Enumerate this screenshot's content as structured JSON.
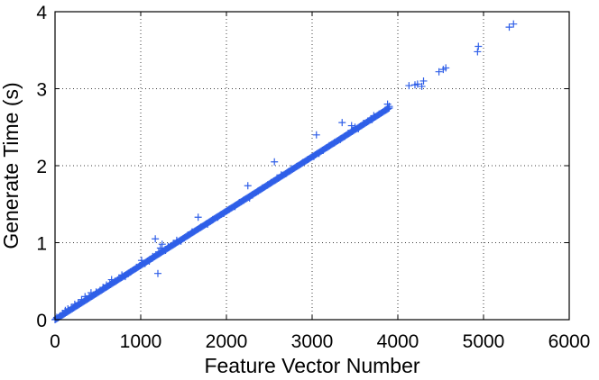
{
  "chart_data": {
    "type": "scatter",
    "title": "",
    "xlabel": "Feature Vector Number",
    "ylabel": "Generate Time (s)",
    "xlim": [
      0,
      6000
    ],
    "ylim": [
      0,
      4
    ],
    "x_ticks": [
      0,
      1000,
      2000,
      3000,
      4000,
      5000,
      6000
    ],
    "y_ticks": [
      0,
      1,
      2,
      3,
      4
    ],
    "x_tick_labels": [
      "0",
      "1000",
      "2000",
      "3000",
      "4000",
      "5000",
      "6000"
    ],
    "y_tick_labels": [
      "0",
      "1",
      "2",
      "3",
      "4"
    ],
    "grid": true,
    "marker": "+",
    "color": "#2f5fe8",
    "trend": {
      "slope_per_1000": 0.705,
      "range": [
        0,
        3900
      ],
      "spacing": 12
    },
    "series": [
      {
        "values": [
          [
            20,
            0.03
          ],
          [
            60,
            0.05
          ],
          [
            90,
            0.08
          ],
          [
            120,
            0.12
          ],
          [
            150,
            0.14
          ],
          [
            190,
            0.16
          ],
          [
            230,
            0.2
          ],
          [
            270,
            0.22
          ],
          [
            310,
            0.26
          ],
          [
            350,
            0.3
          ],
          [
            400,
            0.31
          ],
          [
            420,
            0.35
          ],
          [
            480,
            0.36
          ],
          [
            560,
            0.42
          ],
          [
            600,
            0.45
          ],
          [
            640,
            0.47
          ],
          [
            660,
            0.52
          ],
          [
            700,
            0.5
          ],
          [
            780,
            0.58
          ],
          [
            820,
            0.56
          ],
          [
            880,
            0.62
          ],
          [
            950,
            0.68
          ],
          [
            990,
            0.7
          ],
          [
            1010,
            0.77
          ],
          [
            1050,
            0.73
          ],
          [
            1100,
            0.76
          ],
          [
            1140,
            0.82
          ],
          [
            1170,
            1.05
          ],
          [
            1200,
            0.6
          ],
          [
            1210,
            0.88
          ],
          [
            1230,
            0.93
          ],
          [
            1250,
            0.98
          ],
          [
            1290,
            0.9
          ],
          [
            1320,
            0.95
          ],
          [
            1380,
            0.99
          ],
          [
            1420,
            1.03
          ],
          [
            1470,
            1.02
          ],
          [
            1550,
            1.1
          ],
          [
            1600,
            1.14
          ],
          [
            1670,
            1.33
          ],
          [
            1700,
            1.2
          ],
          [
            1780,
            1.24
          ],
          [
            1840,
            1.3
          ],
          [
            1900,
            1.33
          ],
          [
            1970,
            1.38
          ],
          [
            2030,
            1.43
          ],
          [
            2100,
            1.47
          ],
          [
            2150,
            1.52
          ],
          [
            2200,
            1.55
          ],
          [
            2250,
            1.74
          ],
          [
            2270,
            1.58
          ],
          [
            2300,
            1.62
          ],
          [
            2370,
            1.67
          ],
          [
            2420,
            1.71
          ],
          [
            2480,
            1.75
          ],
          [
            2520,
            1.78
          ],
          [
            2560,
            2.05
          ],
          [
            2590,
            1.84
          ],
          [
            2640,
            1.88
          ],
          [
            2700,
            1.9
          ],
          [
            2760,
            1.96
          ],
          [
            2820,
            1.99
          ],
          [
            2890,
            2.04
          ],
          [
            2950,
            2.08
          ],
          [
            3020,
            2.12
          ],
          [
            3050,
            2.4
          ],
          [
            3080,
            2.16
          ],
          [
            3130,
            2.2
          ],
          [
            3200,
            2.26
          ],
          [
            3260,
            2.3
          ],
          [
            3330,
            2.34
          ],
          [
            3350,
            2.56
          ],
          [
            3380,
            2.38
          ],
          [
            3420,
            2.42
          ],
          [
            3460,
            2.52
          ],
          [
            3500,
            2.5
          ],
          [
            3540,
            2.48
          ],
          [
            3600,
            2.55
          ],
          [
            3650,
            2.58
          ],
          [
            3700,
            2.6
          ],
          [
            3720,
            2.65
          ],
          [
            3780,
            2.67
          ],
          [
            3850,
            2.72
          ],
          [
            3880,
            2.8
          ],
          [
            3900,
            2.77
          ],
          [
            4130,
            3.04
          ],
          [
            4200,
            3.05
          ],
          [
            4230,
            3.06
          ],
          [
            4280,
            3.03
          ],
          [
            4300,
            3.1
          ],
          [
            4480,
            3.22
          ],
          [
            4530,
            3.25
          ],
          [
            4560,
            3.27
          ],
          [
            4930,
            3.48
          ],
          [
            4940,
            3.55
          ],
          [
            5300,
            3.8
          ],
          [
            5350,
            3.84
          ]
        ]
      }
    ]
  }
}
